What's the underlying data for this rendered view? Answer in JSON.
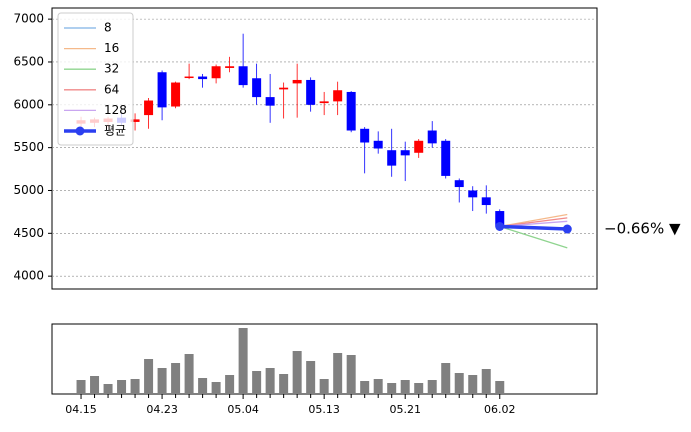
{
  "chart_data": [
    {
      "type": "candlestick",
      "x": [
        0,
        1,
        2,
        3,
        4,
        5,
        6,
        7,
        8,
        9,
        10,
        11,
        12,
        13,
        14,
        15,
        16,
        17,
        18,
        19,
        20,
        21,
        22,
        23,
        24,
        25,
        26,
        27,
        28,
        29,
        30,
        31
      ],
      "open": [
        5780,
        5790,
        5800,
        5850,
        5800,
        5880,
        6380,
        5980,
        6320,
        6330,
        6310,
        6430,
        6450,
        6310,
        6090,
        6180,
        6250,
        6290,
        6020,
        6040,
        6150,
        5720,
        5580,
        5470,
        5470,
        5440,
        5700,
        5580,
        5120,
        5000,
        4920,
        4760
      ],
      "high": [
        5860,
        5850,
        5860,
        5900,
        5900,
        6080,
        6400,
        6270,
        6480,
        6360,
        6470,
        6560,
        6830,
        6480,
        6360,
        6260,
        6480,
        6320,
        6150,
        6270,
        6160,
        5740,
        5690,
        5720,
        5570,
        5600,
        5810,
        5600,
        5140,
        5050,
        5060,
        4780
      ],
      "low": [
        5720,
        5740,
        5740,
        5760,
        5700,
        5720,
        5820,
        5960,
        6300,
        6200,
        6250,
        6380,
        6200,
        6000,
        5790,
        5840,
        5850,
        5920,
        5880,
        5880,
        5680,
        5200,
        5430,
        5160,
        5110,
        5380,
        5500,
        5140,
        4860,
        4760,
        4730,
        4530
      ],
      "close": [
        5820,
        5830,
        5840,
        5790,
        5830,
        6050,
        5970,
        6260,
        6330,
        6300,
        6450,
        6450,
        6230,
        6090,
        5990,
        6200,
        6290,
        6000,
        6040,
        6170,
        5700,
        5560,
        5490,
        5290,
        5410,
        5580,
        5550,
        5170,
        5040,
        4920,
        4830,
        4580
      ],
      "up_color": "#ff0000",
      "down_color": "#0000ff",
      "xlim": [
        -2.15,
        38.2
      ],
      "ylim": [
        3850,
        7130
      ],
      "yticks": [
        4000,
        4500,
        5000,
        5500,
        6000,
        6500,
        7000
      ],
      "grid": true,
      "legend": "upper left",
      "series": [
        {
          "name": "8",
          "color": "#7fb2e5",
          "x": [
            31,
            36
          ],
          "values": [
            4580,
            4560
          ]
        },
        {
          "name": "16",
          "color": "#f5b98a",
          "x": [
            31,
            36
          ],
          "values": [
            4580,
            4720
          ]
        },
        {
          "name": "32",
          "color": "#8fd48f",
          "x": [
            31,
            36
          ],
          "values": [
            4580,
            4330
          ]
        },
        {
          "name": "64",
          "color": "#f08a8a",
          "x": [
            31,
            36
          ],
          "values": [
            4580,
            4680
          ]
        },
        {
          "name": "128",
          "color": "#c9a6f0",
          "x": [
            31,
            36
          ],
          "values": [
            4580,
            4640
          ]
        },
        {
          "name": "평균",
          "color": "#2b3ff0",
          "x": [
            31,
            36
          ],
          "values": [
            4580,
            4550
          ],
          "marker": "o"
        }
      ],
      "annotation": "−0.66% ▼",
      "annotation_color": "#1a1adb"
    },
    {
      "type": "bar",
      "categories": [
        "04.15",
        null,
        null,
        null,
        null,
        null,
        "04.23",
        null,
        null,
        null,
        null,
        null,
        "05.04",
        null,
        null,
        null,
        null,
        null,
        "05.13",
        null,
        null,
        null,
        null,
        null,
        "05.21",
        null,
        null,
        null,
        null,
        null,
        null,
        "06.02"
      ],
      "values": [
        14,
        18,
        10,
        14,
        15,
        35,
        26,
        31,
        40,
        16,
        12,
        19,
        66,
        23,
        26,
        20,
        43,
        33,
        15,
        41,
        39,
        13,
        15,
        11,
        14,
        11,
        14,
        31,
        21,
        19,
        25,
        13
      ],
      "color": "#808080",
      "xlim": [
        -2.15,
        38.2
      ],
      "ylim": [
        0,
        70
      ]
    }
  ]
}
